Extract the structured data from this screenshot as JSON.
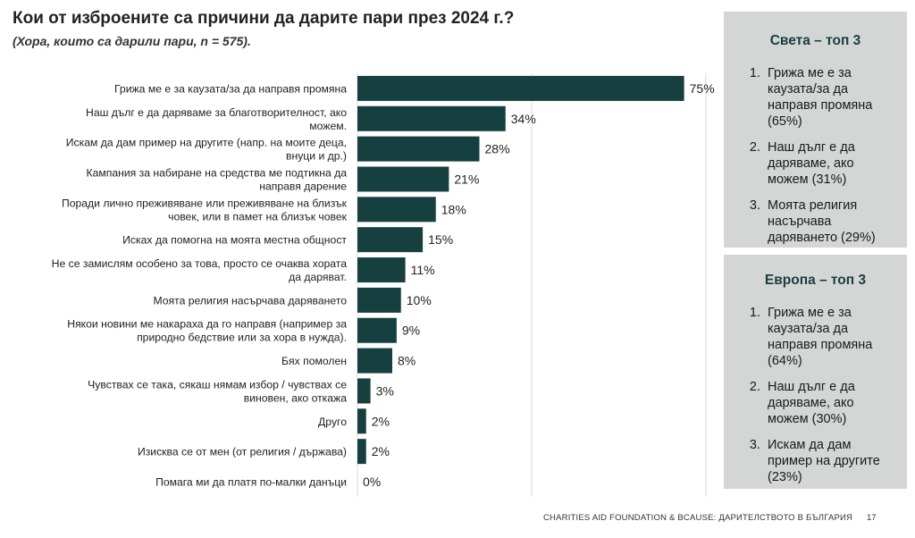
{
  "title": "Кои от изброените са причини да дарите пари през 2024 г.?",
  "subtitle": "(Хора, които са дарили пари, n = 575).",
  "chart_data": {
    "type": "bar",
    "orientation": "horizontal",
    "categories": [
      [
        "Грижа ме е за каузата/за да направя промяна"
      ],
      [
        "Наш дълг е да даряваме за благотворителност, ако",
        "можем."
      ],
      [
        "Искам да дам пример на другите (напр. на моите деца,",
        "внуци и др.)"
      ],
      [
        "Кампания за набиране на средства ме подтикна да",
        "направя дарение"
      ],
      [
        "Поради лично преживяване или преживяване на близък",
        "човек, или в памет на близък човек"
      ],
      [
        "Исках да помогна на моята местна общност"
      ],
      [
        "Не се замислям особено за това, просто се очаква хората",
        "да даряват."
      ],
      [
        "Моята религия насърчава даряването"
      ],
      [
        "Някои новини ме накараха да го направя (например за",
        "природно бедствие или за хора в нужда)."
      ],
      [
        "Бях помолен"
      ],
      [
        "Чувствах се така, сякаш нямам избор / чувствах се",
        "виновен, ако откажа"
      ],
      [
        "Друго"
      ],
      [
        "Изисква се от мен (от религия / държава)"
      ],
      [
        "Помага ми да платя по-малки данъци"
      ]
    ],
    "values": [
      75,
      34,
      28,
      21,
      18,
      15,
      11,
      10,
      9,
      8,
      3,
      2,
      2,
      0
    ],
    "value_labels": [
      "75%",
      "34%",
      "28%",
      "21%",
      "18%",
      "15%",
      "11%",
      "10%",
      "9%",
      "8%",
      "3%",
      "2%",
      "2%",
      "0%"
    ],
    "xlim": [
      0,
      80
    ],
    "gridlines_at": [
      0,
      40,
      80
    ],
    "bar_color": "#16403f",
    "grid_color": "#d9d9d9"
  },
  "world_panel": {
    "title": "Света – топ 3",
    "items": [
      "Грижа ме е за каузата/за да направя промяна (65%)",
      "Наш дълг е да даряваме, ако можем (31%)",
      "Моята религия насърчава даряването (29%)"
    ]
  },
  "europe_panel": {
    "title": "Европа – топ 3",
    "items": [
      "Грижа ме е за каузата/за да направя промяна (64%)",
      "Наш дълг е да даряваме, ако можем (30%)",
      "Искам да дам пример на другите (23%)"
    ]
  },
  "footer": {
    "source": "CHARITIES AID FOUNDATION & BCAUSE: ДАРИТЕЛСТВОТО В БЪЛГАРИЯ",
    "page": "17"
  }
}
